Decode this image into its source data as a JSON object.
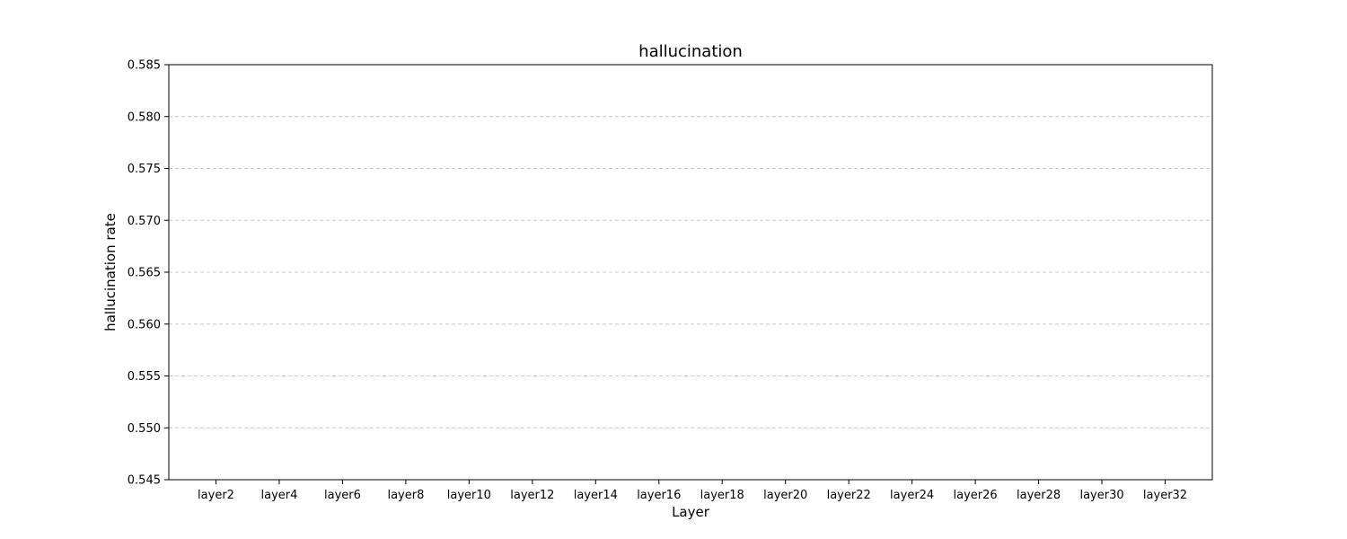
{
  "chart_data": {
    "type": "bar",
    "title": "hallucination",
    "xlabel": "Layer",
    "ylabel": "hallucination rate",
    "categories": [
      "layer2",
      "layer4",
      "layer6",
      "layer8",
      "layer10",
      "layer12",
      "layer14",
      "layer16",
      "layer18",
      "layer20",
      "layer22",
      "layer24",
      "layer26",
      "layer28",
      "layer30",
      "layer32"
    ],
    "ylim": [
      0.545,
      0.585
    ],
    "yticks": [
      "0.545",
      "0.550",
      "0.555",
      "0.560",
      "0.565",
      "0.570",
      "0.575",
      "0.580",
      "0.585"
    ],
    "series": [],
    "grid": "horizontal dashed",
    "grid_color": "#c8c8c8",
    "axis_color": "#000000"
  }
}
